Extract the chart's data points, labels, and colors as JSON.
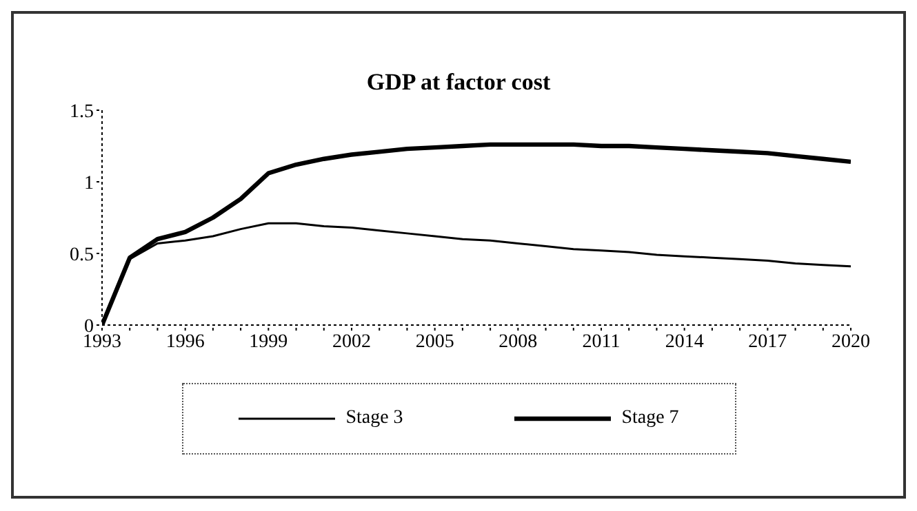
{
  "chart_data": {
    "type": "line",
    "title": "GDP at factor cost",
    "x": [
      1993,
      1994,
      1995,
      1996,
      1997,
      1998,
      1999,
      2000,
      2001,
      2002,
      2003,
      2004,
      2005,
      2006,
      2007,
      2008,
      2009,
      2010,
      2011,
      2012,
      2013,
      2014,
      2015,
      2016,
      2017,
      2018,
      2019,
      2020
    ],
    "series": [
      {
        "name": "Stage 3",
        "color": "#000000",
        "values": [
          0,
          0.46,
          0.57,
          0.59,
          0.62,
          0.67,
          0.71,
          0.71,
          0.69,
          0.68,
          0.66,
          0.64,
          0.62,
          0.6,
          0.59,
          0.57,
          0.55,
          0.53,
          0.52,
          0.51,
          0.49,
          0.48,
          0.47,
          0.46,
          0.45,
          0.43,
          0.42,
          0.41
        ]
      },
      {
        "name": "Stage 7",
        "color": "#000000",
        "values": [
          0,
          0.47,
          0.6,
          0.65,
          0.75,
          0.88,
          1.06,
          1.12,
          1.16,
          1.19,
          1.21,
          1.23,
          1.24,
          1.25,
          1.26,
          1.26,
          1.26,
          1.26,
          1.25,
          1.25,
          1.24,
          1.23,
          1.22,
          1.21,
          1.2,
          1.18,
          1.16,
          1.14
        ]
      }
    ],
    "xlim": [
      1993,
      2020
    ],
    "xticks": [
      1993,
      {
        "value": 1994,
        "label": null
      },
      {
        "value": 1995,
        "label": null
      },
      1996,
      {
        "value": 1997,
        "label": null
      },
      {
        "value": 1998,
        "label": null
      },
      1999,
      {
        "value": 2000,
        "label": null
      },
      {
        "value": 2001,
        "label": null
      },
      2002,
      {
        "value": 2003,
        "label": null
      },
      {
        "value": 2004,
        "label": null
      },
      2005,
      {
        "value": 2006,
        "label": null
      },
      {
        "value": 2007,
        "label": null
      },
      2008,
      {
        "value": 2009,
        "label": null
      },
      {
        "value": 2010,
        "label": null
      },
      2011,
      {
        "value": 2012,
        "label": null
      },
      {
        "value": 2013,
        "label": null
      },
      2014,
      {
        "value": 2015,
        "label": null
      },
      {
        "value": 2016,
        "label": null
      },
      2017,
      {
        "value": 2018,
        "label": null
      },
      {
        "value": 2019,
        "label": null
      },
      2020
    ],
    "ylim": [
      0,
      1.5
    ],
    "yticks": [
      0,
      0.5,
      1,
      1.5
    ],
    "grid": false,
    "legend": "bottom",
    "marker": "none",
    "line_style": "solid"
  }
}
